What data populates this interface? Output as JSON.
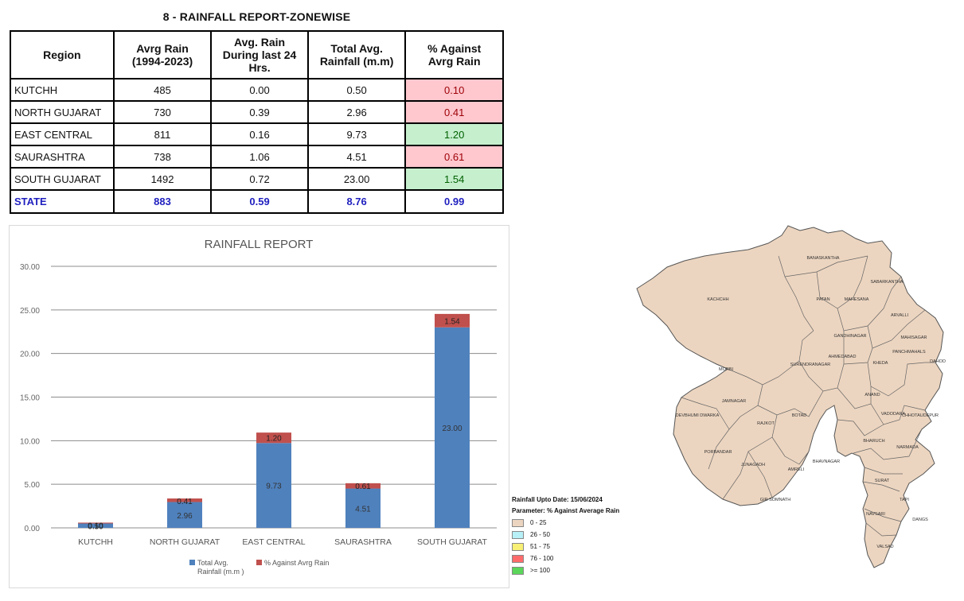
{
  "report": {
    "title": "8 - RAINFALL REPORT-ZONEWISE",
    "headers": [
      "Region",
      "Avrg Rain (1994-2023)",
      "Avg. Rain During last 24 Hrs.",
      "Total Avg. Rainfall (m.m)",
      "% Against Avrg Rain"
    ],
    "rows": [
      {
        "region": "KUTCHH",
        "avrg": "485",
        "last24": "0.00",
        "total": "0.50",
        "pct": "0.10",
        "status": "low"
      },
      {
        "region": "NORTH GUJARAT",
        "avrg": "730",
        "last24": "0.39",
        "total": "2.96",
        "pct": "0.41",
        "status": "low"
      },
      {
        "region": "EAST CENTRAL",
        "avrg": "811",
        "last24": "0.16",
        "total": "9.73",
        "pct": "1.20",
        "status": "high"
      },
      {
        "region": "SAURASHTRA",
        "avrg": "738",
        "last24": "1.06",
        "total": "4.51",
        "pct": "0.61",
        "status": "low"
      },
      {
        "region": "SOUTH GUJARAT",
        "avrg": "1492",
        "last24": "0.72",
        "total": "23.00",
        "pct": "1.54",
        "status": "high"
      }
    ],
    "state": {
      "region": "STATE",
      "avrg": "883",
      "last24": "0.59",
      "total": "8.76",
      "pct": "0.99"
    },
    "colors": {
      "low_fill": "#ffc7ce",
      "low_text": "#9c0006",
      "high_fill": "#c6efce",
      "high_text": "#006100",
      "state_text": "#1f1fbf"
    }
  },
  "chart_data": {
    "type": "bar",
    "stacked": true,
    "title": "RAINFALL REPORT",
    "categories": [
      "KUTCHH",
      "NORTH GUJARAT",
      "EAST CENTRAL",
      "SAURASHTRA",
      "SOUTH GUJARAT"
    ],
    "series": [
      {
        "name": "Total Avg. Rainfall (m.m )",
        "values": [
          0.5,
          2.96,
          9.73,
          4.51,
          23.0
        ],
        "color": "#4f81bd"
      },
      {
        "name": "% Against Avrg Rain",
        "values": [
          0.1,
          0.41,
          1.2,
          0.61,
          1.54
        ],
        "color": "#c0504d"
      }
    ],
    "ylim": [
      0,
      30
    ],
    "yticks": [
      "0.00",
      "5.00",
      "10.00",
      "15.00",
      "20.00",
      "25.00",
      "30.00"
    ],
    "grid": true,
    "legend": "bottom"
  },
  "map": {
    "fill": "#ecd5c0",
    "districts": [
      "KACHCHH",
      "BANASKANTHA",
      "PATAN",
      "MAHESANA",
      "SABARKANTHA",
      "ARVALLI",
      "GANDHINAGAR",
      "MAHISAGAR",
      "DAHOD",
      "SURENDRANAGAR",
      "AHMEDABAD",
      "KHEDA",
      "PANCHMAHALS",
      "MORBI",
      "ANAND",
      "JAMNAGAR",
      "DEVBHUMI DWARKA",
      "RAJKOT",
      "BOTAD",
      "VADODARA",
      "CHHOTAUDEPUR",
      "BHARUCH",
      "NARMADA",
      "PORBANDAR",
      "JUNAGADH",
      "AMRELI",
      "BHAVNAGAR",
      "GIR SOMNATH",
      "SURAT",
      "TAPI",
      "NAVSARI",
      "DANGS",
      "VALSAD"
    ],
    "legend": {
      "date": "Rainfall Upto Date: 15/06/2024",
      "parameter": "Parameter: % Against Average Rain",
      "items": [
        {
          "label": "0 - 25",
          "color": "#ecd5c0"
        },
        {
          "label": "26 - 50",
          "color": "#b7f0f7"
        },
        {
          "label": "51 - 75",
          "color": "#f7f075"
        },
        {
          "label": "76 - 100",
          "color": "#ff6b6b"
        },
        {
          "label": ">= 100",
          "color": "#5bd65b"
        }
      ]
    }
  }
}
